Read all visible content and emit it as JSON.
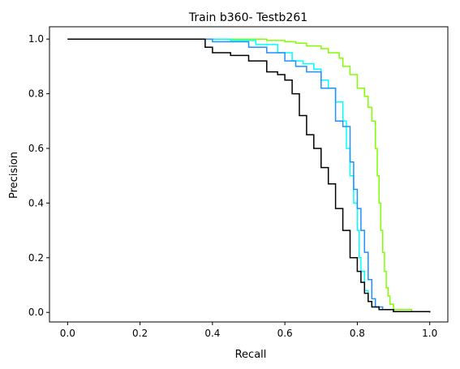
{
  "chart_data": {
    "type": "line",
    "title": "Train b360- Testb261",
    "xlabel": "Recall",
    "ylabel": "Precision",
    "xlim": [
      -0.05,
      1.05
    ],
    "ylim": [
      -0.035,
      1.045
    ],
    "xticks": [
      "0.0",
      "0.2",
      "0.4",
      "0.6",
      "0.8",
      "1.0"
    ],
    "yticks": [
      "0.0",
      "0.2",
      "0.4",
      "0.6",
      "0.8",
      "1.0"
    ],
    "grid": false,
    "series": [
      {
        "color": "#7fff00",
        "x": [
          0.0,
          0.33,
          0.45,
          0.55,
          0.6,
          0.63,
          0.66,
          0.7,
          0.72,
          0.75,
          0.76,
          0.78,
          0.8,
          0.82,
          0.83,
          0.84,
          0.85,
          0.855,
          0.86,
          0.865,
          0.87,
          0.875,
          0.88,
          0.885,
          0.89,
          0.9,
          0.95,
          1.0
        ],
        "y": [
          1.0,
          1.0,
          1.0,
          0.995,
          0.99,
          0.985,
          0.975,
          0.965,
          0.95,
          0.93,
          0.9,
          0.87,
          0.82,
          0.79,
          0.75,
          0.7,
          0.6,
          0.5,
          0.4,
          0.3,
          0.22,
          0.15,
          0.09,
          0.06,
          0.03,
          0.01,
          0.003,
          0.0
        ]
      },
      {
        "color": "#00ffff",
        "x": [
          0.0,
          0.33,
          0.45,
          0.52,
          0.58,
          0.62,
          0.65,
          0.68,
          0.7,
          0.72,
          0.74,
          0.76,
          0.77,
          0.78,
          0.79,
          0.8,
          0.805,
          0.81,
          0.82,
          0.83,
          0.84,
          0.86,
          0.9,
          1.0
        ],
        "y": [
          1.0,
          1.0,
          0.995,
          0.98,
          0.95,
          0.92,
          0.91,
          0.89,
          0.85,
          0.82,
          0.77,
          0.7,
          0.6,
          0.5,
          0.4,
          0.3,
          0.2,
          0.15,
          0.08,
          0.04,
          0.02,
          0.01,
          0.003,
          0.0
        ]
      },
      {
        "color": "#1e90ff",
        "x": [
          0.0,
          0.33,
          0.4,
          0.5,
          0.55,
          0.6,
          0.63,
          0.66,
          0.7,
          0.74,
          0.76,
          0.78,
          0.79,
          0.8,
          0.81,
          0.82,
          0.83,
          0.84,
          0.85,
          0.87,
          0.9,
          1.0
        ],
        "y": [
          1.0,
          1.0,
          0.99,
          0.97,
          0.95,
          0.92,
          0.9,
          0.88,
          0.82,
          0.7,
          0.68,
          0.55,
          0.45,
          0.38,
          0.3,
          0.22,
          0.12,
          0.05,
          0.02,
          0.01,
          0.003,
          0.0
        ]
      },
      {
        "color": "#000000",
        "x": [
          0.0,
          0.33,
          0.38,
          0.4,
          0.45,
          0.5,
          0.55,
          0.58,
          0.6,
          0.62,
          0.64,
          0.66,
          0.68,
          0.7,
          0.72,
          0.74,
          0.76,
          0.78,
          0.8,
          0.81,
          0.82,
          0.83,
          0.84,
          0.86,
          0.9,
          1.0
        ],
        "y": [
          1.0,
          1.0,
          0.97,
          0.95,
          0.94,
          0.92,
          0.88,
          0.87,
          0.85,
          0.8,
          0.72,
          0.65,
          0.6,
          0.53,
          0.47,
          0.38,
          0.3,
          0.2,
          0.15,
          0.11,
          0.07,
          0.04,
          0.02,
          0.01,
          0.003,
          0.0
        ]
      }
    ]
  }
}
